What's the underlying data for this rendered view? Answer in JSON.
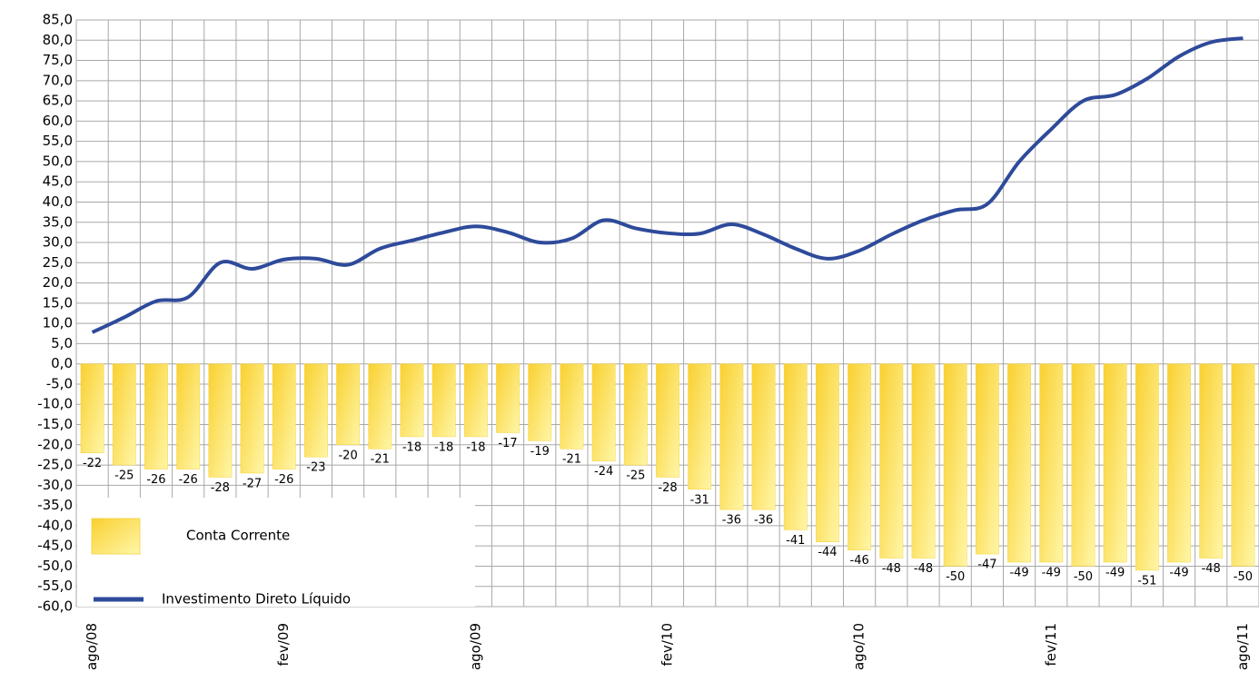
{
  "chart_data": {
    "type": "bar",
    "categories": [
      "ago/08",
      null,
      null,
      null,
      null,
      null,
      "fev/09",
      null,
      null,
      null,
      null,
      null,
      "ago/09",
      null,
      null,
      null,
      null,
      null,
      "fev/10",
      null,
      null,
      null,
      null,
      null,
      "ago/10",
      null,
      null,
      null,
      null,
      null,
      "fev/11",
      null,
      null,
      null,
      null,
      null,
      "ago/11"
    ],
    "series": [
      {
        "name": "Conta Corrente",
        "type": "bar",
        "color": "#f7d23e",
        "values": [
          -22,
          -25,
          -26,
          -26,
          -28,
          -27,
          -26,
          -23,
          -20,
          -21,
          -18,
          -18,
          -18,
          -17,
          -19,
          -21,
          -24,
          -25,
          -28,
          -31,
          -36,
          -36,
          -41,
          -44,
          -46,
          -48,
          -48,
          -50,
          -47,
          -49,
          -49,
          -50,
          -49,
          -51,
          -49,
          -48,
          -50
        ]
      },
      {
        "name": "Investimento Direto Líquido",
        "type": "line",
        "color": "#2e4a9a",
        "values": [
          7.8,
          11.5,
          15.5,
          16.5,
          25,
          23.5,
          25.8,
          26,
          24.5,
          28.5,
          30.5,
          32.5,
          34,
          32.5,
          30,
          31,
          35.5,
          33.5,
          32.3,
          32.2,
          34.5,
          32,
          28.5,
          26,
          28,
          32,
          35.5,
          38,
          39.5,
          50,
          58,
          65,
          66.5,
          70.5,
          76,
          79.5,
          80.5
        ]
      }
    ],
    "ylim": [
      -60,
      85
    ],
    "yticks": [
      {
        "value": -60,
        "label": "-60,0"
      },
      {
        "value": -55,
        "label": "-55,0"
      },
      {
        "value": -50,
        "label": "-50,0"
      },
      {
        "value": -45,
        "label": "-45,0"
      },
      {
        "value": -40,
        "label": "-40,0"
      },
      {
        "value": -35,
        "label": "-35,0"
      },
      {
        "value": -30,
        "label": "-30,0"
      },
      {
        "value": -25,
        "label": "-25,0"
      },
      {
        "value": -20,
        "label": "-20,0"
      },
      {
        "value": -15,
        "label": "-15,0"
      },
      {
        "value": -10,
        "label": "-10,0"
      },
      {
        "value": -5,
        "label": "-5,0"
      },
      {
        "value": 0,
        "label": "0,0"
      },
      {
        "value": 5,
        "label": "5,0"
      },
      {
        "value": 10,
        "label": "10,0"
      },
      {
        "value": 15,
        "label": "15,0"
      },
      {
        "value": 20,
        "label": "20,0"
      },
      {
        "value": 25,
        "label": "25,0"
      },
      {
        "value": 30,
        "label": "30,0"
      },
      {
        "value": 35,
        "label": "35,0"
      },
      {
        "value": 40,
        "label": "40,0"
      },
      {
        "value": 45,
        "label": "45,0"
      },
      {
        "value": 50,
        "label": "50,0"
      },
      {
        "value": 55,
        "label": "55,0"
      },
      {
        "value": 60,
        "label": "60,0"
      },
      {
        "value": 65,
        "label": "65,0"
      },
      {
        "value": 70,
        "label": "70,0"
      },
      {
        "value": 75,
        "label": "75,0"
      },
      {
        "value": 80,
        "label": "80,0"
      },
      {
        "value": 85,
        "label": "85,0"
      }
    ],
    "grid": true,
    "legend": "lower left"
  }
}
